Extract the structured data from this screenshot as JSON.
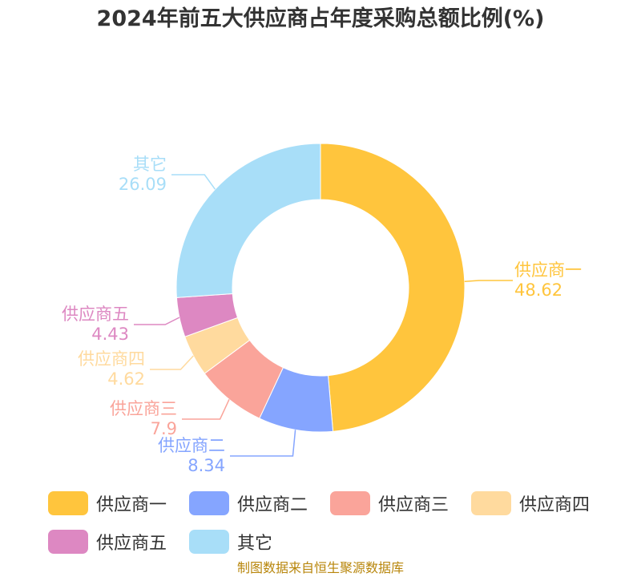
{
  "chart_data": {
    "type": "pie",
    "style": "donut",
    "title": "2024年前五大供应商占年度采购总额比例(%)",
    "categories": [
      "供应商一",
      "供应商二",
      "供应商三",
      "供应商四",
      "供应商五",
      "其它"
    ],
    "values": [
      48.62,
      8.34,
      7.9,
      4.62,
      4.43,
      26.09
    ],
    "value_labels": [
      "48.62",
      "8.34",
      "7.9",
      "4.62",
      "4.43",
      "26.09"
    ],
    "colors": [
      "#FFC53D",
      "#85A5FF",
      "#FAA49A",
      "#FFDA9E",
      "#DD88C2",
      "#A8DEF8"
    ],
    "legend_placement": "bottom"
  },
  "source": "制图数据来自恒生聚源数据库"
}
